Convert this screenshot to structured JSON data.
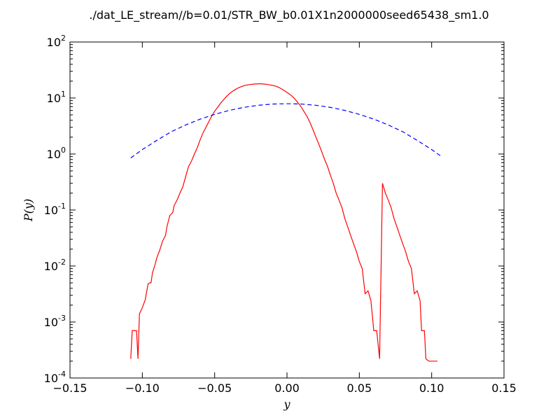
{
  "chart_data": {
    "type": "line",
    "title": "./dat_LE_stream//b=0.01/STR_BW_b0.01X1n2000000seed65438_sm1.0",
    "xlabel": "y",
    "ylabel": "P(y)",
    "xlim": [
      -0.15,
      0.15
    ],
    "ylim": [
      0.0001,
      100
    ],
    "yscale": "log",
    "grid": false,
    "x_ticks": [
      {
        "value": -0.15,
        "label": "−0.15"
      },
      {
        "value": -0.1,
        "label": "−0.10"
      },
      {
        "value": -0.05,
        "label": "−0.05"
      },
      {
        "value": 0.0,
        "label": "0.00"
      },
      {
        "value": 0.05,
        "label": "0.05"
      },
      {
        "value": 0.1,
        "label": "0.10"
      },
      {
        "value": 0.15,
        "label": "0.15"
      }
    ],
    "y_ticks": [
      {
        "value": 0.0001,
        "base": "10",
        "exp": "-4"
      },
      {
        "value": 0.001,
        "base": "10",
        "exp": "-3"
      },
      {
        "value": 0.01,
        "base": "10",
        "exp": "-2"
      },
      {
        "value": 0.1,
        "base": "10",
        "exp": "-1"
      },
      {
        "value": 1,
        "base": "10",
        "exp": "0"
      },
      {
        "value": 10,
        "base": "10",
        "exp": "1"
      },
      {
        "value": 100,
        "base": "10",
        "exp": "2"
      }
    ],
    "series": [
      {
        "color": "#ff0000",
        "style": "solid",
        "x": [
          -0.108,
          -0.107,
          -0.106,
          -0.104,
          -0.103,
          -0.102,
          -0.1,
          -0.098,
          -0.096,
          -0.095,
          -0.094,
          -0.093,
          -0.091,
          -0.09,
          -0.088,
          -0.086,
          -0.084,
          -0.083,
          -0.081,
          -0.079,
          -0.078,
          -0.076,
          -0.074,
          -0.072,
          -0.07,
          -0.068,
          -0.066,
          -0.064,
          -0.062,
          -0.06,
          -0.058,
          -0.056,
          -0.054,
          -0.052,
          -0.05,
          -0.048,
          -0.046,
          -0.044,
          -0.042,
          -0.04,
          -0.038,
          -0.036,
          -0.034,
          -0.032,
          -0.03,
          -0.028,
          -0.026,
          -0.024,
          -0.022,
          -0.02,
          -0.018,
          -0.016,
          -0.014,
          -0.012,
          -0.01,
          -0.008,
          -0.006,
          -0.004,
          -0.002,
          0.0,
          0.002,
          0.004,
          0.006,
          0.008,
          0.01,
          0.012,
          0.014,
          0.016,
          0.018,
          0.02,
          0.022,
          0.024,
          0.026,
          0.028,
          0.03,
          0.032,
          0.034,
          0.036,
          0.038,
          0.04,
          0.042,
          0.044,
          0.046,
          0.048,
          0.05,
          0.052,
          0.054,
          0.056,
          0.058,
          0.06,
          0.062,
          0.064,
          0.066,
          0.068,
          0.07,
          0.072,
          0.074,
          0.076,
          0.078,
          0.08,
          0.082,
          0.084,
          0.086,
          0.088,
          0.09,
          0.092,
          0.093,
          0.095,
          0.096,
          0.098,
          0.099,
          0.101,
          0.102,
          0.104
        ],
        "y": [
          0.00022,
          0.0007,
          0.0007,
          0.0007,
          0.00022,
          0.0014,
          0.0018,
          0.0025,
          0.0048,
          0.005,
          0.005,
          0.0075,
          0.011,
          0.014,
          0.019,
          0.028,
          0.035,
          0.05,
          0.08,
          0.09,
          0.12,
          0.15,
          0.2,
          0.26,
          0.4,
          0.6,
          0.75,
          1.0,
          1.3,
          1.8,
          2.4,
          3.0,
          3.8,
          4.8,
          5.8,
          6.8,
          8.0,
          9.2,
          10.5,
          11.8,
          13.0,
          14.0,
          15.0,
          15.8,
          16.5,
          17.0,
          17.3,
          17.6,
          17.8,
          17.9,
          17.9,
          17.8,
          17.5,
          17.2,
          16.8,
          16.3,
          15.6,
          14.7,
          13.6,
          12.6,
          11.6,
          10.5,
          9.2,
          8.0,
          6.8,
          5.6,
          4.6,
          3.6,
          2.7,
          2.0,
          1.5,
          1.1,
          0.8,
          0.6,
          0.42,
          0.3,
          0.2,
          0.15,
          0.11,
          0.07,
          0.05,
          0.035,
          0.025,
          0.018,
          0.012,
          0.009,
          0.0032,
          0.0036,
          0.0024,
          0.0007,
          0.0007,
          0.00022,
          0.3,
          0.2,
          0.15,
          0.11,
          0.07,
          0.05,
          0.035,
          0.025,
          0.018,
          0.012,
          0.009,
          0.0032,
          0.0036,
          0.0024,
          0.0007,
          0.0007,
          0.00022,
          0.0002,
          0.0002,
          0.0002,
          0.0002,
          0.0002
        ]
      },
      {
        "color": "#0000ff",
        "style": "dashed",
        "x": [
          -0.108,
          -0.1,
          -0.09,
          -0.08,
          -0.07,
          -0.06,
          -0.05,
          -0.04,
          -0.03,
          -0.02,
          -0.01,
          0.0,
          0.01,
          0.02,
          0.03,
          0.04,
          0.05,
          0.06,
          0.07,
          0.08,
          0.09,
          0.1,
          0.106
        ],
        "y": [
          0.85,
          1.2,
          1.75,
          2.5,
          3.3,
          4.2,
          5.1,
          6.0,
          6.8,
          7.4,
          7.8,
          7.9,
          7.8,
          7.4,
          6.8,
          6.0,
          5.1,
          4.2,
          3.3,
          2.5,
          1.75,
          1.2,
          0.93
        ]
      }
    ]
  }
}
